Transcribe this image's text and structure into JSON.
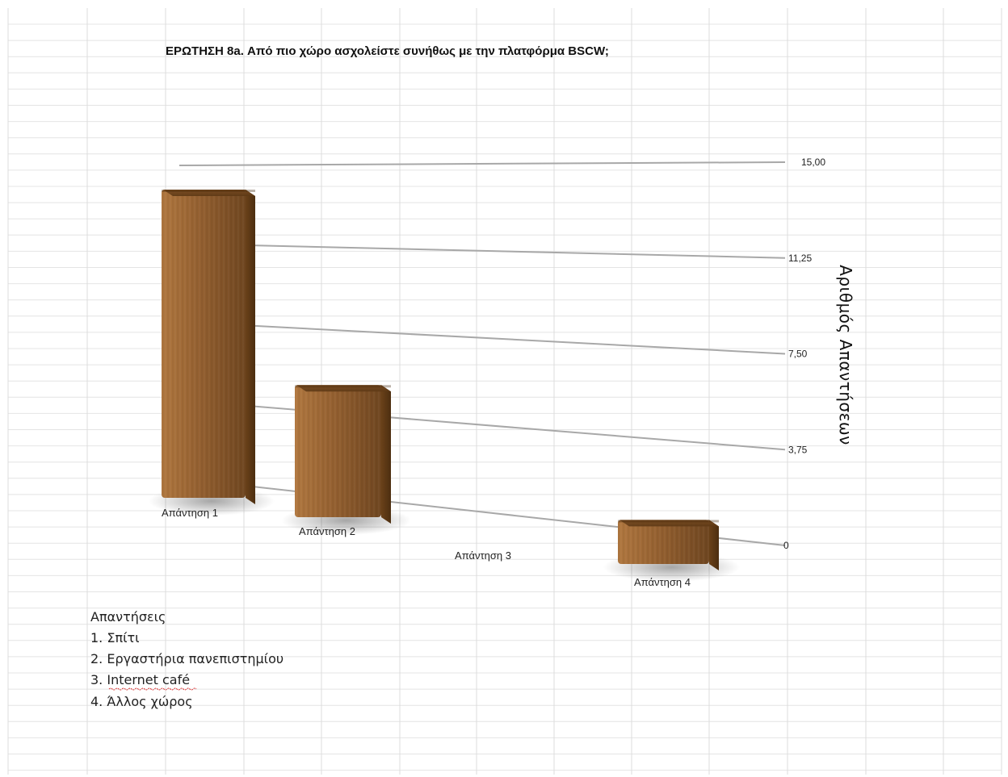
{
  "chart_data": {
    "type": "bar",
    "title": "ΕΡΩΤΗΣΗ 8a. Από πιο χώρο ασχολείστε συνήθως με την πλατφόρμα BSCW;",
    "ylabel": "Αριθμός Απαντήσεων",
    "categories": [
      "Απάντηση 1",
      "Απάντηση 2",
      "Απάντηση 3",
      "Απάντηση 4"
    ],
    "values": [
      14,
      6,
      0,
      2
    ],
    "ylim": [
      0,
      15
    ],
    "yticks": [
      "0",
      "3,75",
      "7,50",
      "11,25",
      "15,00"
    ],
    "grid": true,
    "bar_color": "#8a5a2c"
  },
  "legend": {
    "heading": "Απαντήσεις",
    "items": [
      "1. Σπίτι",
      "2. Εργαστήρια πανεπιστημίου",
      "3. Internet café",
      "4. Άλλος χώρος"
    ]
  }
}
